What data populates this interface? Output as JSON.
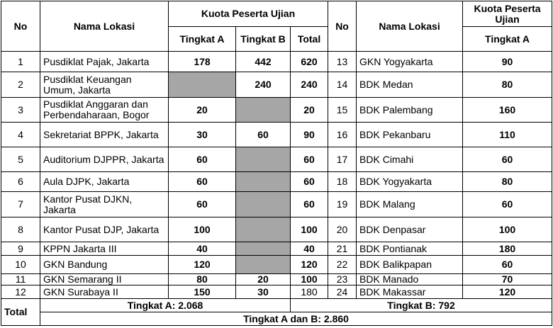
{
  "header": {
    "no": "No",
    "name": "Nama Lokasi",
    "quota": "Kuota Peserta Ujian",
    "a": "Tingkat A",
    "b": "Tingkat B",
    "total": "Total",
    "no_right": "No",
    "name_right": "Nama Lokasi",
    "quota_right": "Kuota Peserta Ujian",
    "a_right": "Tingkat A"
  },
  "rows": [
    {
      "no": 1,
      "name": "Pusdiklat Pajak, Jakarta",
      "a": 178,
      "b": 442,
      "total": 620
    },
    {
      "no": 2,
      "name": "Pusdiklat Keuangan Umum, Jakarta",
      "a": null,
      "b": 240,
      "total": 240
    },
    {
      "no": 3,
      "name": "Pusdiklat Anggaran dan Perbendaharaan, Bogor",
      "a": 20,
      "b": null,
      "total": 20
    },
    {
      "no": 4,
      "name": "Sekretariat BPPK, Jakarta",
      "a": 30,
      "b": 60,
      "total": 90
    },
    {
      "no": 5,
      "name": "Auditorium DJPPR, Jakarta",
      "a": 60,
      "b": null,
      "total": 60
    },
    {
      "no": 6,
      "name": "Aula DJPK, Jakarta",
      "a": 60,
      "b": null,
      "total": 60
    },
    {
      "no": 7,
      "name": "Kantor Pusat DJKN, Jakarta",
      "a": 60,
      "b": null,
      "total": 60
    },
    {
      "no": 8,
      "name": "Kantor Pusat DJP, Jakarta",
      "a": 100,
      "b": null,
      "total": 100
    },
    {
      "no": 9,
      "name": "KPPN Jakarta III",
      "a": 40,
      "b": null,
      "total": 40
    },
    {
      "no": 10,
      "name": "GKN Bandung",
      "a": 120,
      "b": null,
      "total": 120
    },
    {
      "no": 11,
      "name": "GKN Semarang II",
      "a": 80,
      "b": 20,
      "total": 100
    },
    {
      "no": 12,
      "name": "GKN Surabaya II",
      "a": 150,
      "b": 30,
      "total": 180
    }
  ],
  "rows_right": [
    {
      "no": 13,
      "name": "GKN Yogyakarta",
      "a": 90
    },
    {
      "no": 14,
      "name": "BDK Medan",
      "a": 80
    },
    {
      "no": 15,
      "name": "BDK Palembang",
      "a": 160
    },
    {
      "no": 16,
      "name": "BDK Pekanbaru",
      "a": 110
    },
    {
      "no": 17,
      "name": "BDK Cimahi",
      "a": 60
    },
    {
      "no": 18,
      "name": "BDK Yogyakarta",
      "a": 80
    },
    {
      "no": 19,
      "name": "BDK Malang",
      "a": 60
    },
    {
      "no": 20,
      "name": "BDK Denpasar",
      "a": 100
    },
    {
      "no": 21,
      "name": "BDK Pontianak",
      "a": 180
    },
    {
      "no": 22,
      "name": "BDK Balikpapan",
      "a": 60
    },
    {
      "no": 23,
      "name": "BDK Manado",
      "a": 70
    },
    {
      "no": 24,
      "name": "BDK Makassar",
      "a": 120
    }
  ],
  "totals": {
    "label": "Total",
    "a": "Tingkat A: 2.068",
    "b": "Tingkat B: 792",
    "ab": "Tingkat A dan B: 2.860"
  }
}
